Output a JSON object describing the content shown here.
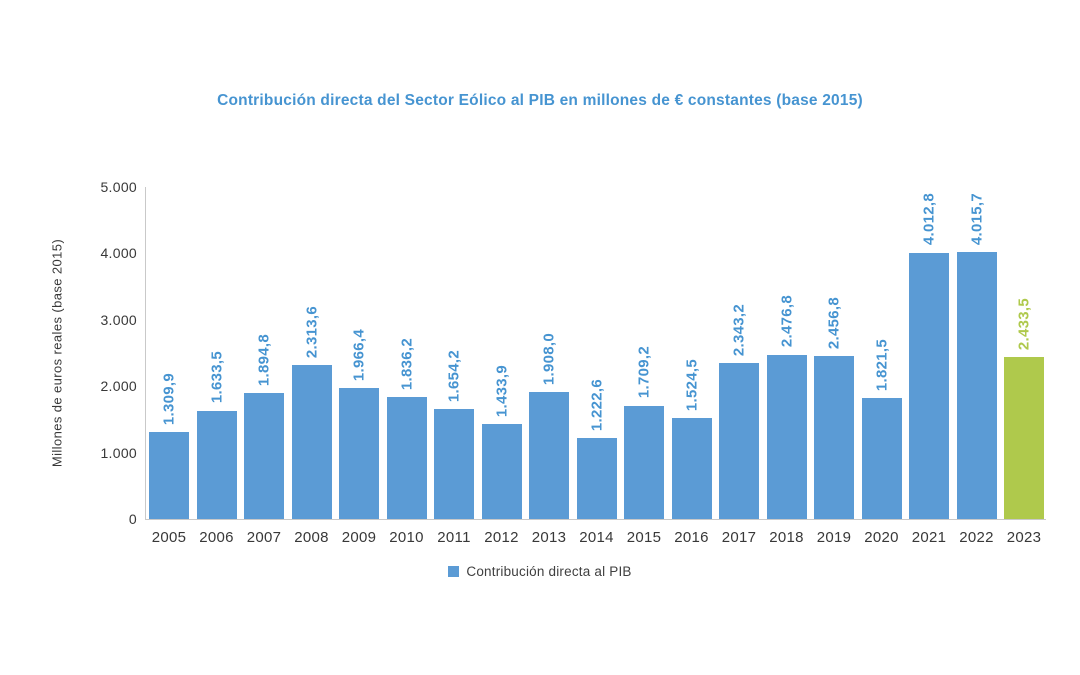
{
  "title": "Contribución directa del Sector Eólico al PIB en millones de € constantes (base 2015)",
  "y_axis": {
    "label": "Millones de euros reales (base 2015)",
    "tick_labels": [
      "5.000",
      "4.000",
      "3.000",
      "2.000",
      "1.000",
      "0"
    ]
  },
  "legend": {
    "label": "Contribución directa al PIB",
    "position": "bottom"
  },
  "colors": {
    "bar": "#5b9bd5",
    "highlight_bar": "#afc94c",
    "title_text": "#4694d1",
    "value_label_text": "#4694d1",
    "highlight_value_label_text": "#afc94c",
    "axis_line": "#c9c9c9",
    "axis_text": "#383838"
  },
  "chart_data": {
    "type": "bar",
    "title": "Contribución directa del Sector Eólico al PIB en millones de € constantes (base 2015)",
    "xlabel": "",
    "ylabel": "Millones de euros reales (base 2015)",
    "ylim": [
      0,
      5000
    ],
    "ytick_values": [
      0,
      1000,
      2000,
      3000,
      4000,
      5000
    ],
    "grid": false,
    "legend_position": "bottom",
    "series_name": "Contribución directa al PIB",
    "categories": [
      "2005",
      "2006",
      "2007",
      "2008",
      "2009",
      "2010",
      "2011",
      "2012",
      "2013",
      "2014",
      "2015",
      "2016",
      "2017",
      "2018",
      "2019",
      "2020",
      "2021",
      "2022",
      "2023"
    ],
    "values": [
      1309.9,
      1633.5,
      1894.8,
      2313.6,
      1966.4,
      1836.2,
      1654.2,
      1433.9,
      1908.0,
      1222.6,
      1709.2,
      1524.5,
      2343.2,
      2476.8,
      2456.8,
      1821.5,
      4012.8,
      4015.7,
      2433.5
    ],
    "value_labels": [
      "1.309,9",
      "1.633,5",
      "1.894,8",
      "2.313,6",
      "1.966,4",
      "1.836,2",
      "1.654,2",
      "1.433,9",
      "1.908,0",
      "1.222,6",
      "1.709,2",
      "1.524,5",
      "2.343,2",
      "2.476,8",
      "2.456,8",
      "1.821,5",
      "4.012,8",
      "4.015,7",
      "2.433,5"
    ],
    "highlight_index": 18
  }
}
